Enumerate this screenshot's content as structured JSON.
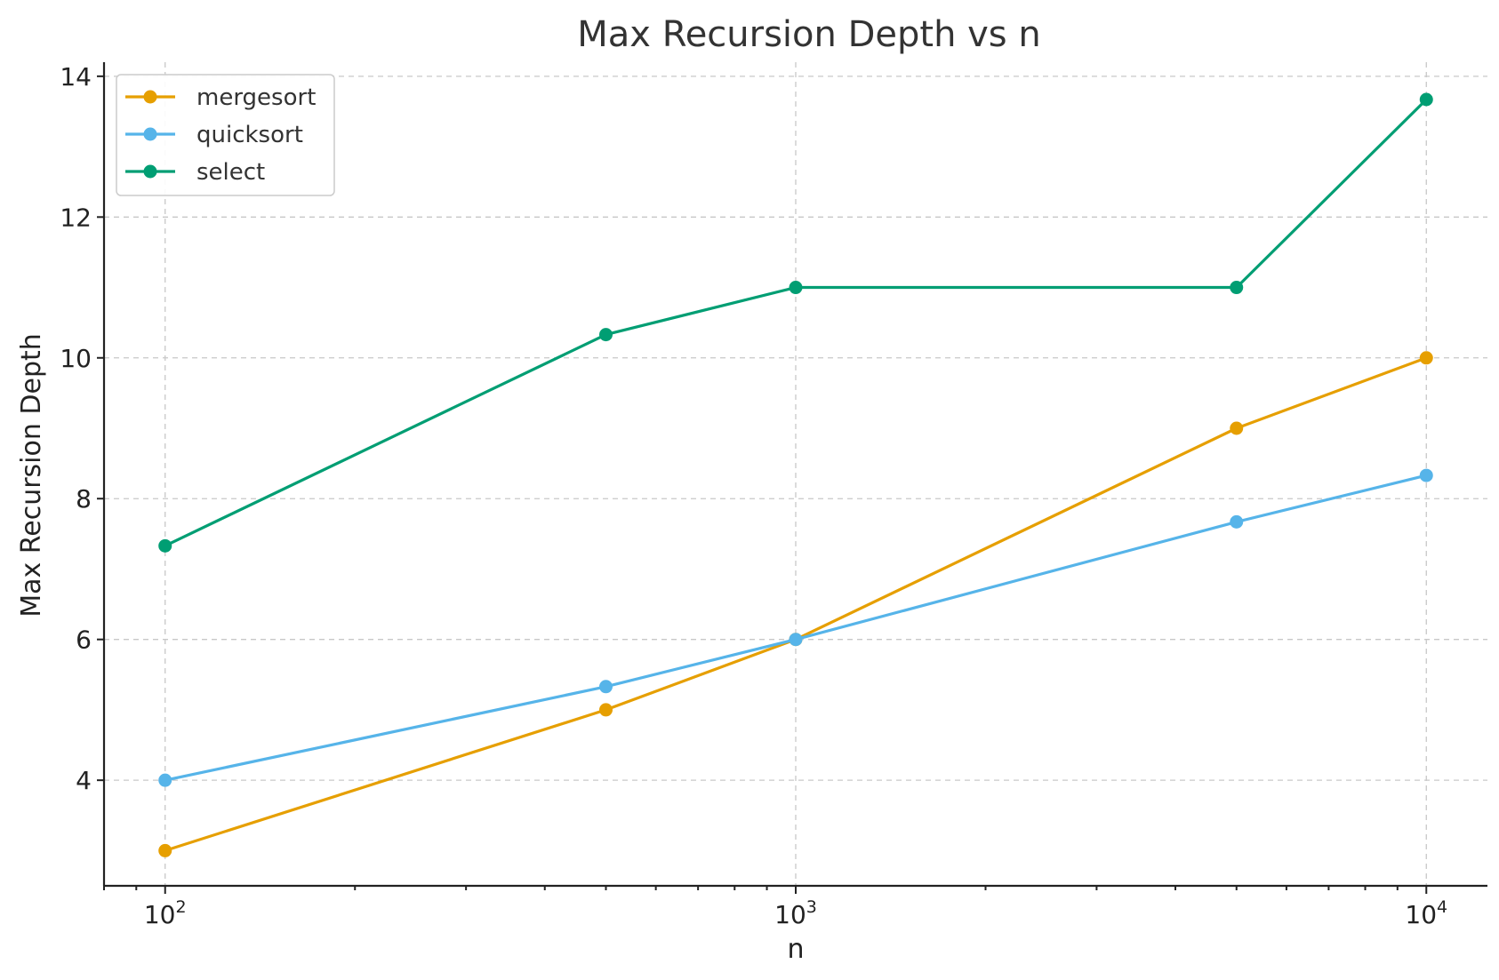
{
  "chart_data": {
    "type": "line",
    "title": "Max Recursion Depth vs n",
    "xlabel": "n",
    "ylabel": "Max Recursion Depth",
    "xscale": "log",
    "xlim": [
      80,
      12500
    ],
    "ylim": [
      2.5,
      14.2
    ],
    "x": [
      100,
      500,
      1000,
      5000,
      10000
    ],
    "xticks": [
      {
        "value": 100,
        "base": "10",
        "exp": "2"
      },
      {
        "value": 1000,
        "base": "10",
        "exp": "3"
      },
      {
        "value": 10000,
        "base": "10",
        "exp": "4"
      }
    ],
    "yticks": [
      4,
      6,
      8,
      10,
      12,
      14
    ],
    "grid": true,
    "legend_position": "top-left",
    "series": [
      {
        "name": "mergesort",
        "color": "#E69F00",
        "values": [
          3,
          5,
          6,
          9,
          10
        ]
      },
      {
        "name": "quicksort",
        "color": "#56B4E9",
        "values": [
          4,
          5.33,
          6,
          7.67,
          8.33
        ]
      },
      {
        "name": "select",
        "color": "#009E73",
        "values": [
          7.33,
          10.33,
          11,
          11,
          13.67
        ]
      }
    ]
  }
}
